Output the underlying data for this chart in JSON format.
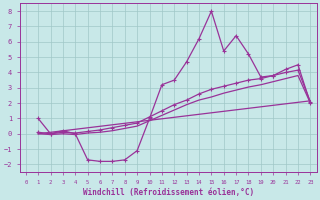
{
  "xlabel": "Windchill (Refroidissement éolien,°C)",
  "xlim": [
    -0.5,
    23.5
  ],
  "ylim": [
    -2.5,
    8.5
  ],
  "yticks": [
    -2,
    -1,
    0,
    1,
    2,
    3,
    4,
    5,
    6,
    7,
    8
  ],
  "xticks": [
    0,
    1,
    2,
    3,
    4,
    5,
    6,
    7,
    8,
    9,
    10,
    11,
    12,
    13,
    14,
    15,
    16,
    17,
    18,
    19,
    20,
    21,
    22,
    23
  ],
  "bg_color": "#c8e8e8",
  "grid_color": "#a0c8c8",
  "line_color": "#993399",
  "line1_x": [
    1,
    2,
    3,
    4,
    5,
    6,
    7,
    8,
    9,
    10,
    11,
    12,
    13,
    14,
    15,
    16,
    17,
    18,
    19,
    20,
    21,
    22,
    23
  ],
  "line1_y": [
    1.0,
    0.0,
    0.2,
    0.0,
    -1.7,
    -1.8,
    -1.8,
    -1.7,
    -1.1,
    1.0,
    3.2,
    3.5,
    4.7,
    6.2,
    8.0,
    5.4,
    6.4,
    5.2,
    3.7,
    3.8,
    4.2,
    4.5,
    2.0
  ],
  "line2_x": [
    1,
    2,
    3,
    4,
    5,
    6,
    7,
    8,
    9,
    10,
    11,
    12,
    13,
    14,
    15,
    16,
    17,
    18,
    19,
    20,
    21,
    22,
    23
  ],
  "line2_y": [
    0.1,
    0.0,
    0.1,
    0.05,
    0.15,
    0.25,
    0.4,
    0.55,
    0.7,
    1.1,
    1.5,
    1.9,
    2.2,
    2.6,
    2.9,
    3.1,
    3.3,
    3.5,
    3.6,
    3.8,
    4.0,
    4.15,
    2.1
  ],
  "line3_x": [
    1,
    2,
    3,
    4,
    5,
    6,
    7,
    8,
    9,
    10,
    11,
    12,
    13,
    14,
    15,
    16,
    17,
    18,
    19,
    20,
    21,
    22,
    23
  ],
  "line3_y": [
    0.0,
    -0.05,
    0.0,
    -0.05,
    0.05,
    0.1,
    0.2,
    0.35,
    0.5,
    0.85,
    1.2,
    1.55,
    1.9,
    2.2,
    2.4,
    2.65,
    2.85,
    3.05,
    3.2,
    3.4,
    3.6,
    3.8,
    2.0
  ],
  "line4_x": [
    1,
    23
  ],
  "line4_y": [
    0.0,
    2.15
  ]
}
